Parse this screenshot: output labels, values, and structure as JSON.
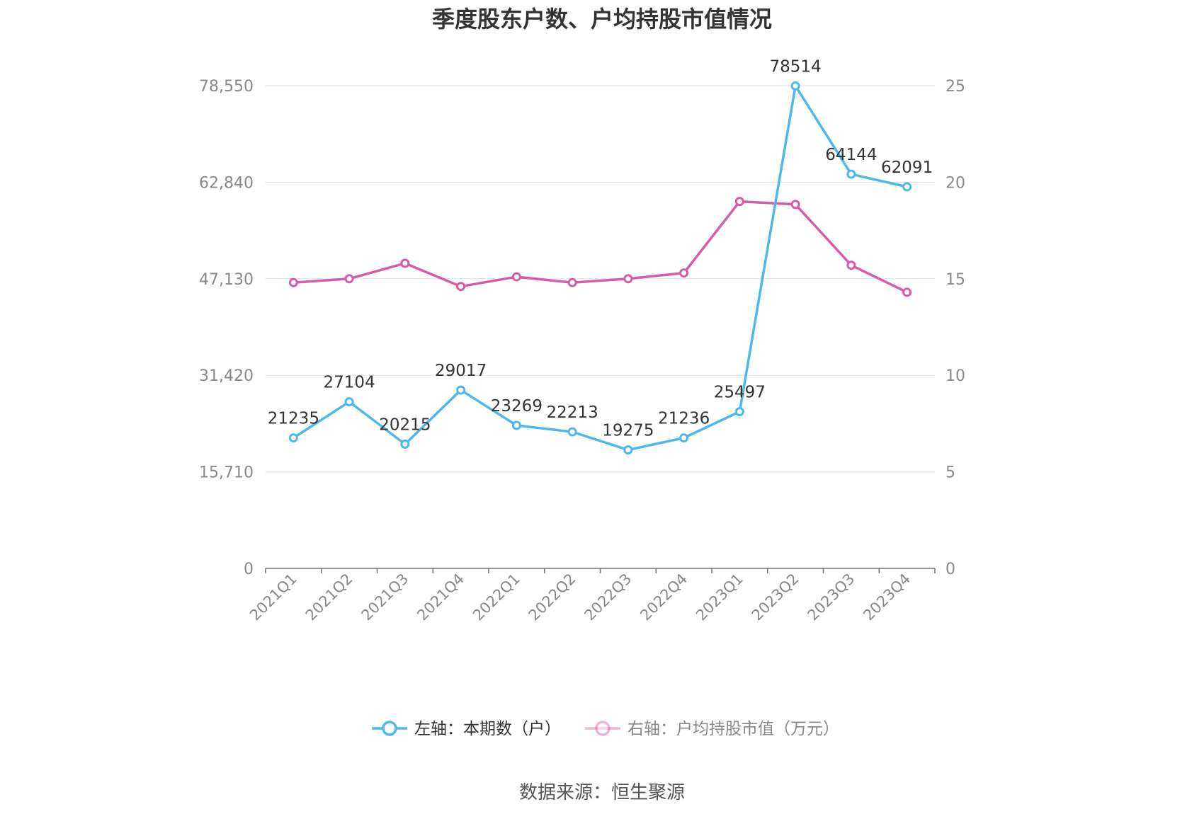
{
  "chart_data": {
    "type": "line",
    "title": "季度股东户数、户均持股市值情况",
    "categories": [
      "2021Q1",
      "2021Q2",
      "2021Q3",
      "2021Q4",
      "2022Q1",
      "2022Q2",
      "2022Q3",
      "2022Q4",
      "2023Q1",
      "2023Q2",
      "2023Q3",
      "2023Q4"
    ],
    "left_axis": {
      "ticks": [
        "0",
        "15,710",
        "31,420",
        "47,130",
        "62,840",
        "78,550"
      ],
      "ylim": [
        0,
        78550
      ]
    },
    "right_axis": {
      "ticks": [
        "0",
        "5",
        "10",
        "15",
        "20",
        "25"
      ],
      "ylim": [
        0,
        25
      ]
    },
    "grid": true,
    "legend_position": "bottom",
    "series": [
      {
        "name": "左轴：本期数（户）",
        "axis": "left",
        "color": "#4db8ec",
        "values": [
          21235,
          27104,
          20215,
          29017,
          23269,
          22213,
          19275,
          21236,
          25497,
          78514,
          64144,
          62091
        ],
        "labels": [
          "21235",
          "27104",
          "20215",
          "29017",
          "23269",
          "22213",
          "19275",
          "21236",
          "25497",
          "78514",
          "64144",
          "62091"
        ]
      },
      {
        "name": "右轴：户均持股市值（万元）",
        "axis": "right",
        "color": "#d65ca6",
        "values": [
          14.8,
          15.0,
          15.8,
          14.6,
          15.1,
          14.8,
          15.0,
          15.3,
          19.0,
          18.85,
          15.7,
          14.3
        ]
      }
    ],
    "source": "数据来源：恒生聚源"
  }
}
